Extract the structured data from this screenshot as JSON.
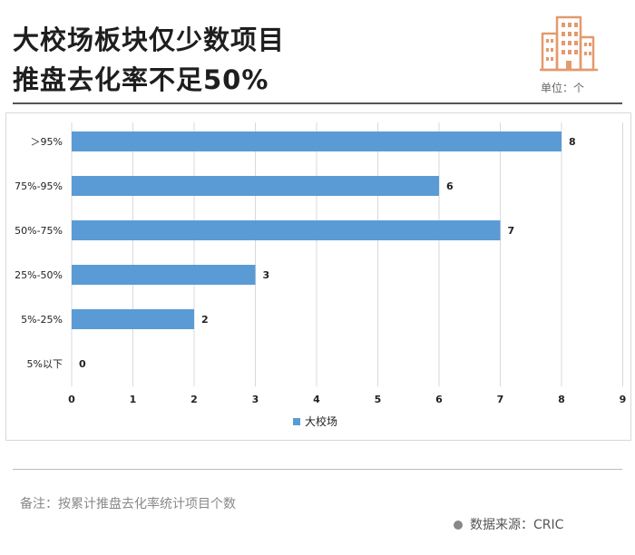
{
  "title_lines": [
    "大校场板块仅少数项目",
    "推盘去化率不足50%"
  ],
  "unit_label": "单位：个",
  "note": "备注：按累计推盘去化率统计项目个数",
  "source": "数据来源：CRIC",
  "colors": {
    "bar": "#5b9bd5",
    "icon": "#e39a6e",
    "title": "#1e1e1e"
  },
  "chart_data": {
    "type": "bar",
    "orientation": "horizontal",
    "categories": [
      "＞95%",
      "75%-95%",
      "50%-75%",
      "25%-50%",
      "5%-25%",
      "5%以下"
    ],
    "series": [
      {
        "name": "大校场",
        "values": [
          8,
          6,
          7,
          3,
          2,
          0
        ]
      }
    ],
    "xlim": [
      0,
      9
    ],
    "xticks": [
      0,
      1,
      2,
      3,
      4,
      5,
      6,
      7,
      8,
      9
    ],
    "grid": true,
    "data_labels": true,
    "legend": "bottom-center"
  }
}
